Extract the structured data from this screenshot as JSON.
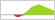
{
  "chart_data": {
    "type": "area",
    "series": [
      {
        "color": "#cc1100",
        "x": [
          7,
          8,
          9,
          10,
          11,
          12
        ],
        "values": [
          0.0,
          -0.08,
          -0.1,
          -0.08,
          -0.03,
          0.0
        ]
      },
      {
        "color": "#88cc00",
        "x": [
          12,
          13,
          14,
          15,
          16,
          17,
          18,
          19,
          20,
          21,
          22,
          23,
          24,
          25,
          26,
          27,
          28
        ],
        "values": [
          0.05,
          0.1,
          0.18,
          0.28,
          0.38,
          0.42,
          0.45,
          0.5,
          0.52,
          0.48,
          0.44,
          0.4,
          0.36,
          0.32,
          0.28,
          0.22,
          0.18
        ]
      }
    ],
    "xlim": [
      0,
      28
    ],
    "ylim": [
      -0.25,
      0.75
    ],
    "tick_labels": false,
    "grid": false
  }
}
